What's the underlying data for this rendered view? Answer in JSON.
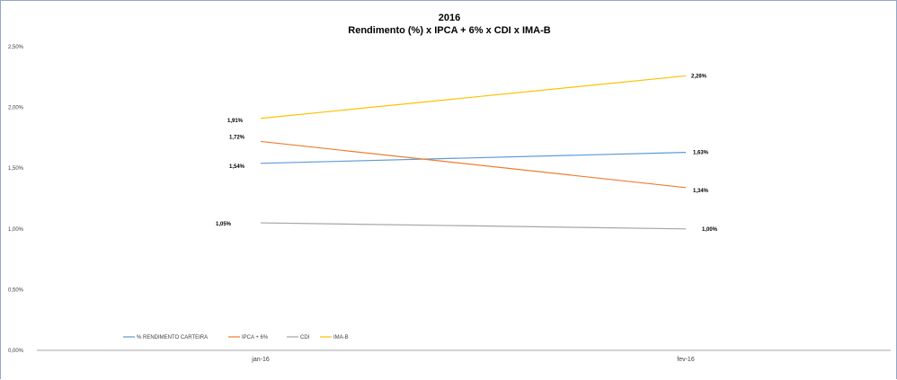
{
  "title": "2016",
  "subtitle": "Rendimento (%) x IPCA + 6%  x CDI x IMA-B",
  "chart_data": {
    "type": "line",
    "title": "2016",
    "subtitle": "Rendimento (%) x IPCA + 6%  x CDI x IMA-B",
    "categories": [
      "jan-16",
      "fev-16"
    ],
    "ylim": [
      0,
      2.5
    ],
    "yticks": [
      "0,00%",
      "0,50%",
      "1,00%",
      "1,50%",
      "2,00%",
      "2,50%"
    ],
    "ytick_values": [
      0,
      0.5,
      1.0,
      1.5,
      2.0,
      2.5
    ],
    "grid": false,
    "legend_position": "bottom-left",
    "series": [
      {
        "name": "% RENDIMENTO CARTEIRA",
        "color": "#5b9bd5",
        "values": [
          1.54,
          1.63
        ],
        "labels": [
          "1,54%",
          "1,63%"
        ]
      },
      {
        "name": "IPCA + 6%",
        "color": "#ed7d31",
        "values": [
          1.72,
          1.34
        ],
        "labels": [
          "1,72%",
          "1,34%"
        ]
      },
      {
        "name": "CDI",
        "color": "#a5a5a5",
        "values": [
          1.05,
          1.0
        ],
        "labels": [
          "1,05%",
          "1,00%"
        ]
      },
      {
        "name": "IMA-B",
        "color": "#ffc000",
        "values": [
          1.91,
          2.26
        ],
        "labels": [
          "1,91%",
          "2,26%"
        ]
      }
    ]
  }
}
